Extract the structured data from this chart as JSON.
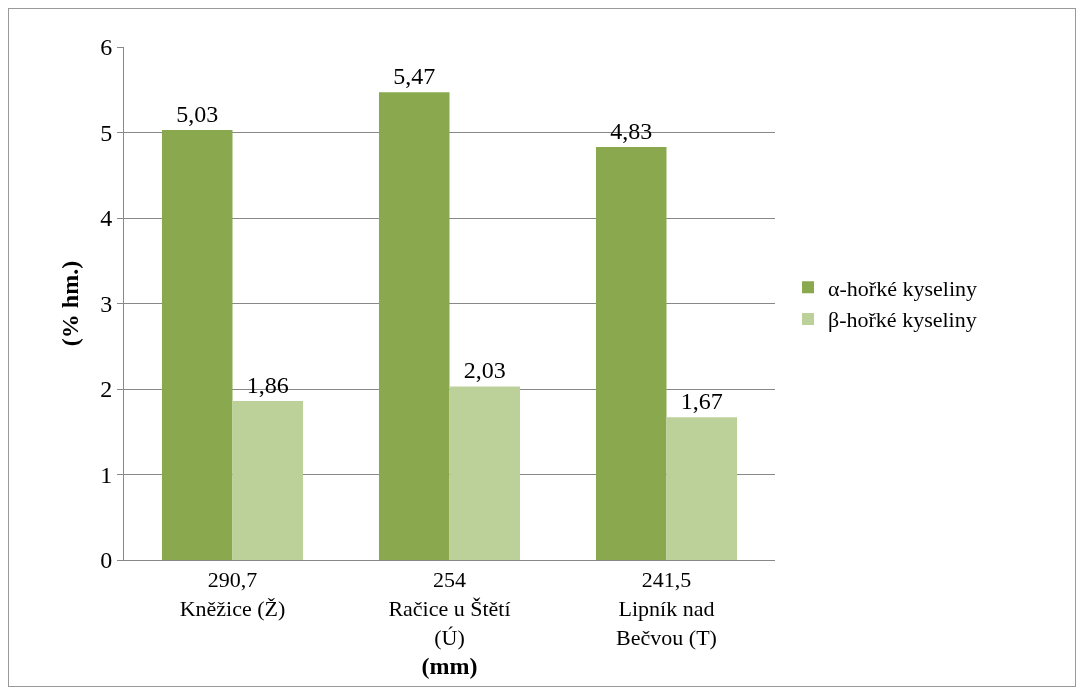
{
  "chart_data": {
    "type": "bar",
    "xlabel": "(mm)",
    "ylabel": "(% hm.)",
    "categories": [
      "290,7\nKněžice (Ž)",
      "254\nRačice u Štětí\n(Ú)",
      "241,5\nLipník nad\nBečvou (T)"
    ],
    "series": [
      {
        "name": "α-hořké kyseliny",
        "color": "#8aa94f",
        "values": [
          5.03,
          5.47,
          4.83
        ],
        "value_labels": [
          "5,03",
          "5,47",
          "4,83"
        ]
      },
      {
        "name": "β-hořké kyseliny",
        "color": "#bcd19a",
        "values": [
          1.86,
          2.03,
          1.67
        ],
        "value_labels": [
          "1,86",
          "2,03",
          "1,67"
        ]
      }
    ],
    "ylim": [
      0,
      6
    ],
    "yticks": [
      0,
      1,
      2,
      3,
      4,
      5,
      6
    ],
    "grid": "y",
    "legend": "right"
  }
}
